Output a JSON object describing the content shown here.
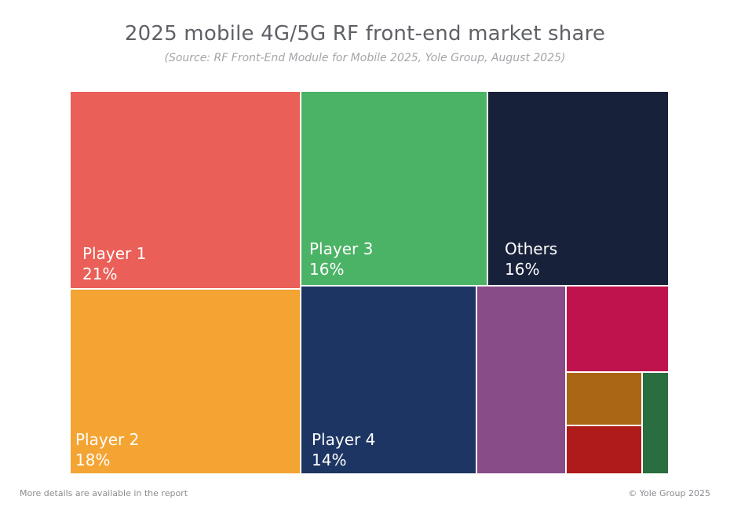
{
  "chart_data": {
    "type": "treemap",
    "title": "2025 mobile 4G/5G RF front-end market share",
    "subtitle": "(Source: RF Front-End Module for Mobile 2025, Yole Group, August 2025)",
    "segments": [
      {
        "name": "Player 1",
        "value_label": "21%",
        "color": "#ea5f57"
      },
      {
        "name": "Player 2",
        "value_label": "18%",
        "color": "#f4a432"
      },
      {
        "name": "Player 3",
        "value_label": "16%",
        "color": "#4bb366"
      },
      {
        "name": "Others",
        "value_label": "16%",
        "color": "#18213a"
      },
      {
        "name": "Player 4",
        "value_label": "14%",
        "color": "#1d3563"
      },
      {
        "name": "",
        "value_label": "",
        "color": "#884c88"
      },
      {
        "name": "",
        "value_label": "",
        "color": "#bf134d"
      },
      {
        "name": "",
        "value_label": "",
        "color": "#aa6615"
      },
      {
        "name": "",
        "value_label": "",
        "color": "#af1a1a"
      },
      {
        "name": "",
        "value_label": "",
        "color": "#2a6d3f"
      }
    ]
  },
  "footer": {
    "left": "More details are available in the report",
    "right": "© Yole Group 2025"
  }
}
